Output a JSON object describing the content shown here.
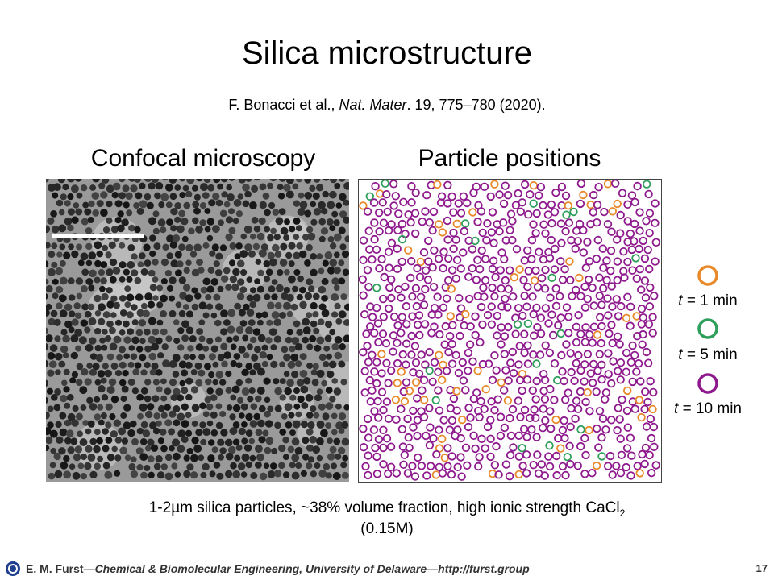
{
  "slide": {
    "title": "Silica microstructure",
    "citation": {
      "authors": "F. Bonacci et al., ",
      "journal": "Nat. Mater",
      "details": ". 19, 775–780 (2020)."
    },
    "panels": [
      "Confocal microscopy",
      "Particle positions"
    ],
    "legend": [
      {
        "symbol": "t",
        "text": " = 1 min"
      },
      {
        "symbol": "t",
        "text": " = 5 min"
      },
      {
        "symbol": "t",
        "text": " = 10 min"
      }
    ],
    "caption": {
      "main": "1-2µm silica particles, ~38% volume fraction, high ionic strength CaCl",
      "subscript": "2",
      "tail": "(0.15M)"
    },
    "footer": {
      "author": "E. M. Furst",
      "affiliation": "—Chemical & Biomolecular Engineering, University of Delaware—",
      "link": "http://furst.group",
      "page": "17"
    }
  }
}
